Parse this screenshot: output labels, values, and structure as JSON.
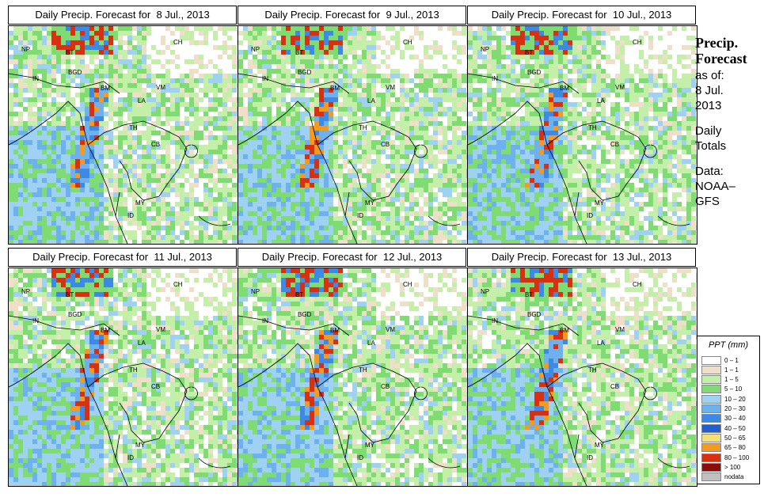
{
  "panels": [
    {
      "title": "Daily Precip. Forecast for  8 Jul., 2013",
      "seed": 11
    },
    {
      "title": "Daily Precip. Forecast for  9 Jul., 2013",
      "seed": 23
    },
    {
      "title": "Daily Precip. Forecast for  10 Jul., 2013",
      "seed": 37
    },
    {
      "title": "Daily Precip. Forecast for  11 Jul., 2013",
      "seed": 41
    },
    {
      "title": "Daily Precip. Forecast for  12 Jul., 2013",
      "seed": 53
    },
    {
      "title": "Daily Precip. Forecast for  13 Jul., 2013",
      "seed": 67
    }
  ],
  "country_labels": [
    "NP",
    "BT",
    "BGD",
    "IN",
    "BM",
    "VM",
    "LA",
    "TH",
    "CB",
    "CH",
    "MY",
    "ID"
  ],
  "sidebar": {
    "title_line1": "Precip.",
    "title_line2": "Forecast",
    "asof": "as of:",
    "date_line1": "8 Jul.",
    "date_line2": "2013",
    "daily_line1": "Daily",
    "daily_line2": "Totals",
    "data_line1": "Data:",
    "data_line2": "NOAA–",
    "data_line3": "GFS"
  },
  "legend": {
    "title": "PPT (mm)",
    "items": [
      {
        "label": "0 – 1",
        "color": "#ffffff"
      },
      {
        "label": "1 – 1",
        "color": "#efdfc8"
      },
      {
        "label": "1 – 5",
        "color": "#c4efa8"
      },
      {
        "label": "5 – 10",
        "color": "#7fdc72"
      },
      {
        "label": "10 – 20",
        "color": "#9fd2f2"
      },
      {
        "label": "20 – 30",
        "color": "#6db1ee"
      },
      {
        "label": "30 – 40",
        "color": "#3d8ae6"
      },
      {
        "label": "40 – 50",
        "color": "#1f5fd6"
      },
      {
        "label": "50 – 65",
        "color": "#f5e070"
      },
      {
        "label": "65 – 80",
        "color": "#f59a1a"
      },
      {
        "label": "80 – 100",
        "color": "#d83010"
      },
      {
        "label": "> 100",
        "color": "#8b0c0c"
      },
      {
        "label": "nodata",
        "color": "#c0c0c0"
      }
    ]
  }
}
